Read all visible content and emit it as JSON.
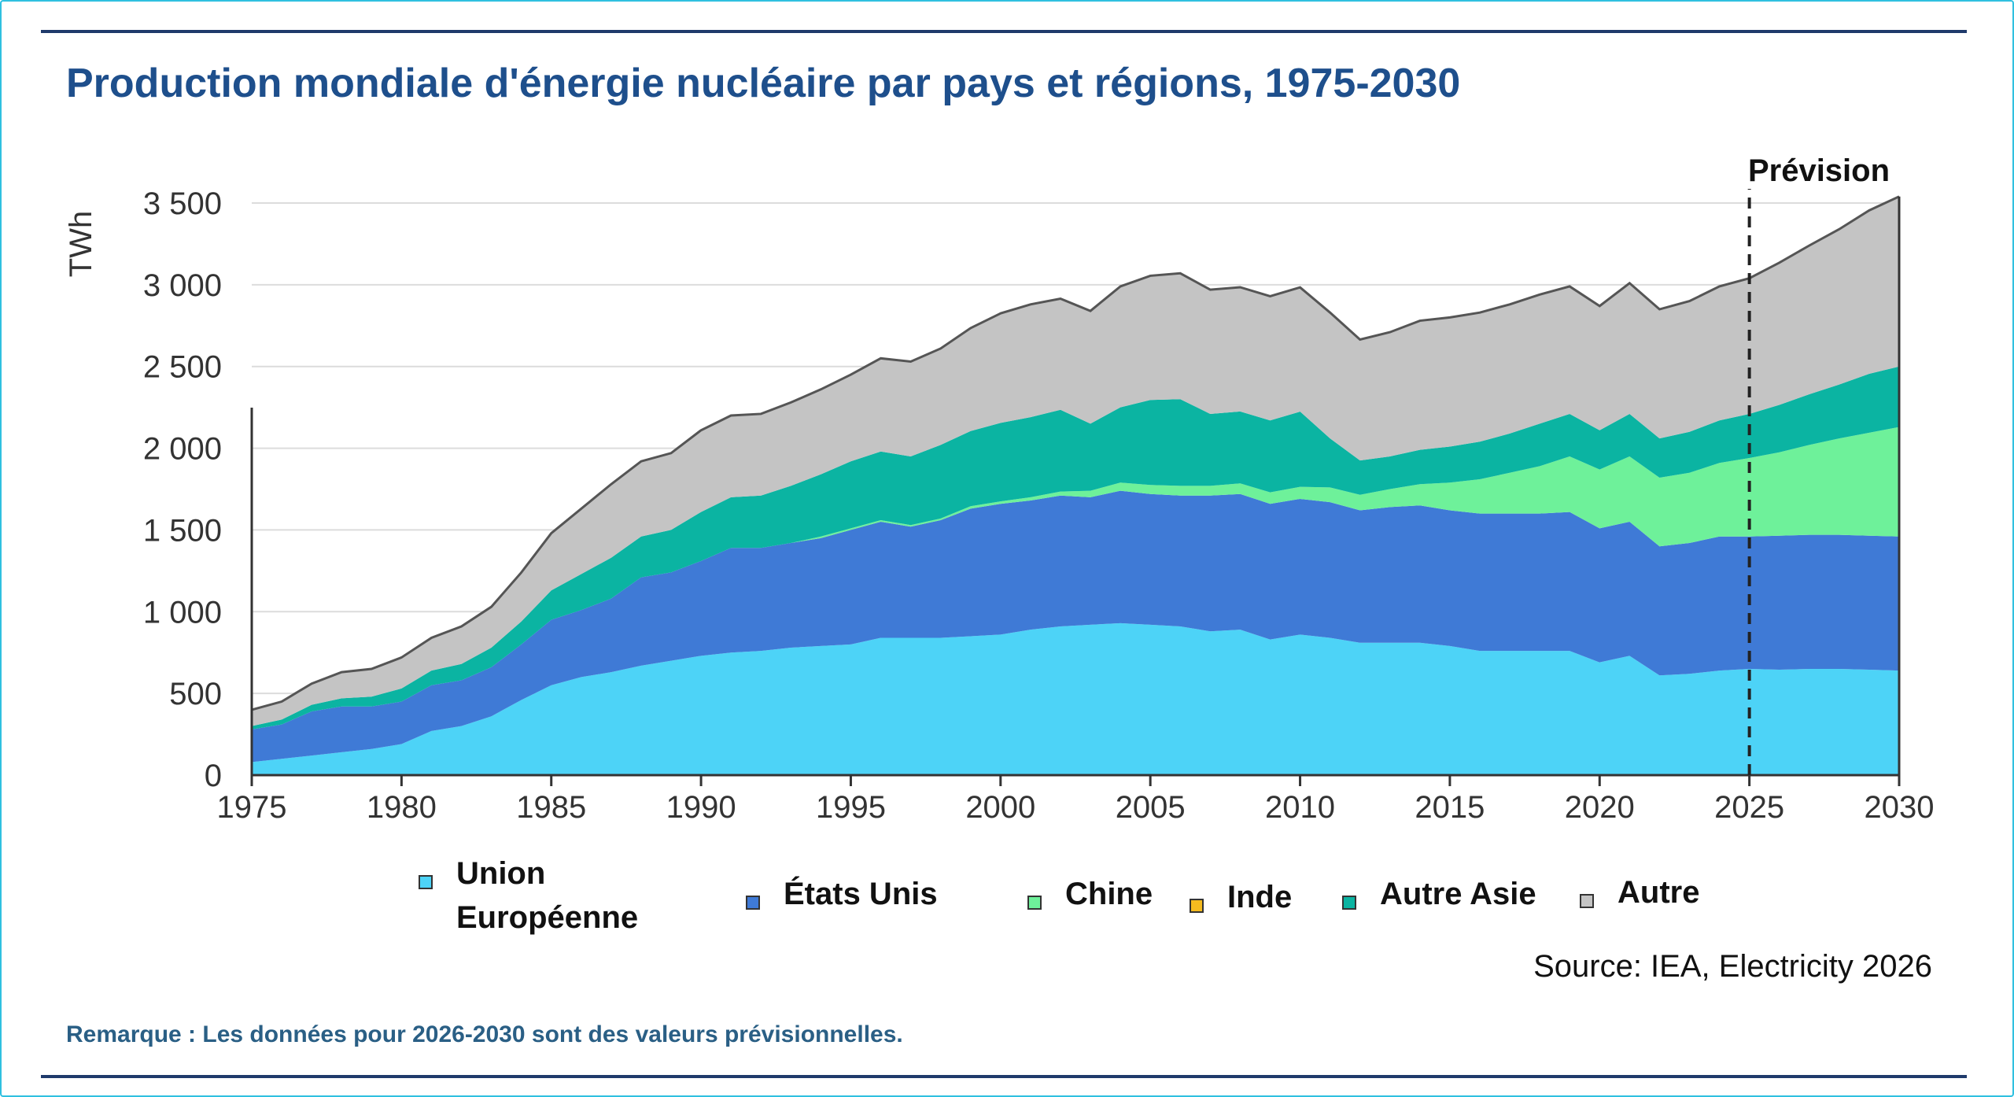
{
  "title": "Production mondiale d'énergie nucléaire par pays et régions, 1975-2030",
  "source": "Source: IEA, Electricity 2026",
  "note": "Remarque : Les données pour 2026-2030  sont des valeurs prévisionnelles.",
  "colors": {
    "ue": "#4dd3f7",
    "us": "#3f7ad6",
    "chine": "#6ef19a",
    "inde": "#f5bb1f",
    "autre_asie": "#0bb4a2",
    "autre": "#c4c4c4"
  },
  "chart_data": {
    "type": "area",
    "stacked": true,
    "title": "Production mondiale d'énergie nucléaire par pays et régions, 1975-2030",
    "xlabel": "",
    "ylabel": "TWh",
    "xlim": [
      1975,
      2030
    ],
    "ylim": [
      0,
      3500
    ],
    "x_ticks": [
      1975,
      1980,
      1985,
      1990,
      1995,
      2000,
      2005,
      2010,
      2015,
      2020,
      2025,
      2030
    ],
    "y_ticks": [
      {
        "value": 0,
        "label": "0"
      },
      {
        "value": 500,
        "label": "500"
      },
      {
        "value": 1000,
        "label": "1 000"
      },
      {
        "value": 1500,
        "label": "1 500"
      },
      {
        "value": 2000,
        "label": "2 000"
      },
      {
        "value": 2500,
        "label": "2 500"
      },
      {
        "value": 3000,
        "label": "3 000"
      },
      {
        "value": 3500,
        "label": "3 500"
      }
    ],
    "grid": "horizontal",
    "legend_position": "bottom",
    "annotation": {
      "x": 2025,
      "label": "Prévision",
      "style": "dashed-vertical-line"
    },
    "x": [
      1975,
      1976,
      1977,
      1978,
      1979,
      1980,
      1981,
      1982,
      1983,
      1984,
      1985,
      1986,
      1987,
      1988,
      1989,
      1990,
      1991,
      1992,
      1993,
      1994,
      1995,
      1996,
      1997,
      1998,
      1999,
      2000,
      2001,
      2002,
      2003,
      2004,
      2005,
      2006,
      2007,
      2008,
      2009,
      2010,
      2011,
      2012,
      2013,
      2014,
      2015,
      2016,
      2017,
      2018,
      2019,
      2020,
      2021,
      2022,
      2023,
      2024,
      2025,
      2026,
      2027,
      2028,
      2029,
      2030
    ],
    "series": [
      {
        "key": "ue",
        "name": "Union\nEuropéenne",
        "values": [
          80,
          100,
          120,
          140,
          160,
          190,
          270,
          300,
          360,
          460,
          550,
          600,
          630,
          670,
          700,
          730,
          750,
          760,
          780,
          790,
          800,
          840,
          840,
          840,
          850,
          860,
          890,
          910,
          920,
          930,
          920,
          910,
          880,
          890,
          830,
          860,
          840,
          810,
          810,
          810,
          790,
          760,
          760,
          760,
          760,
          690,
          730,
          610,
          620,
          640,
          650,
          645,
          650,
          650,
          645,
          640
        ]
      },
      {
        "key": "us",
        "name": "États Unis",
        "values": [
          200,
          210,
          270,
          280,
          260,
          260,
          280,
          280,
          300,
          340,
          400,
          410,
          450,
          540,
          540,
          580,
          640,
          630,
          640,
          660,
          700,
          710,
          680,
          720,
          780,
          800,
          790,
          800,
          780,
          810,
          800,
          800,
          830,
          830,
          830,
          830,
          830,
          810,
          830,
          840,
          830,
          840,
          840,
          840,
          850,
          820,
          820,
          790,
          800,
          820,
          810,
          820,
          820,
          820,
          820,
          820
        ]
      },
      {
        "key": "chine",
        "name": "Chine",
        "values": [
          0,
          0,
          0,
          0,
          0,
          0,
          0,
          0,
          0,
          0,
          0,
          0,
          0,
          0,
          0,
          0,
          0,
          0,
          0,
          10,
          10,
          10,
          10,
          10,
          15,
          15,
          20,
          25,
          40,
          50,
          55,
          60,
          60,
          65,
          70,
          74,
          90,
          95,
          110,
          130,
          170,
          210,
          250,
          290,
          340,
          360,
          400,
          420,
          430,
          450,
          480,
          510,
          550,
          590,
          630,
          670
        ]
      },
      {
        "key": "inde",
        "name": "Inde",
        "values": [
          0,
          0,
          0,
          0,
          0,
          0,
          0,
          0,
          0,
          0,
          0,
          0,
          0,
          0,
          0,
          0,
          0,
          0,
          0,
          0,
          0,
          0,
          0,
          0,
          0,
          0,
          0,
          0,
          0,
          0,
          0,
          0,
          0,
          0,
          0,
          0,
          0,
          0,
          0,
          0,
          0,
          0,
          0,
          0,
          0,
          0,
          0,
          0,
          0,
          0,
          0,
          0,
          0,
          0,
          0,
          0
        ]
      },
      {
        "key": "autre_asie",
        "name": "Autre Asie",
        "values": [
          20,
          30,
          40,
          50,
          60,
          80,
          90,
          100,
          120,
          140,
          180,
          220,
          250,
          250,
          260,
          300,
          310,
          320,
          350,
          380,
          410,
          420,
          420,
          450,
          460,
          480,
          490,
          500,
          410,
          460,
          520,
          530,
          440,
          440,
          440,
          460,
          300,
          210,
          200,
          210,
          220,
          230,
          240,
          260,
          260,
          240,
          260,
          240,
          250,
          260,
          270,
          290,
          310,
          330,
          360,
          370
        ]
      },
      {
        "key": "autre",
        "name": "Autre",
        "values": [
          100,
          110,
          130,
          160,
          170,
          190,
          200,
          230,
          250,
          300,
          350,
          400,
          450,
          460,
          470,
          500,
          500,
          500,
          510,
          520,
          530,
          570,
          580,
          590,
          630,
          670,
          690,
          680,
          690,
          740,
          760,
          770,
          760,
          760,
          760,
          760,
          770,
          740,
          760,
          790,
          790,
          790,
          790,
          790,
          780,
          760,
          800,
          790,
          800,
          820,
          830,
          870,
          910,
          950,
          1000,
          1040
        ]
      }
    ]
  }
}
